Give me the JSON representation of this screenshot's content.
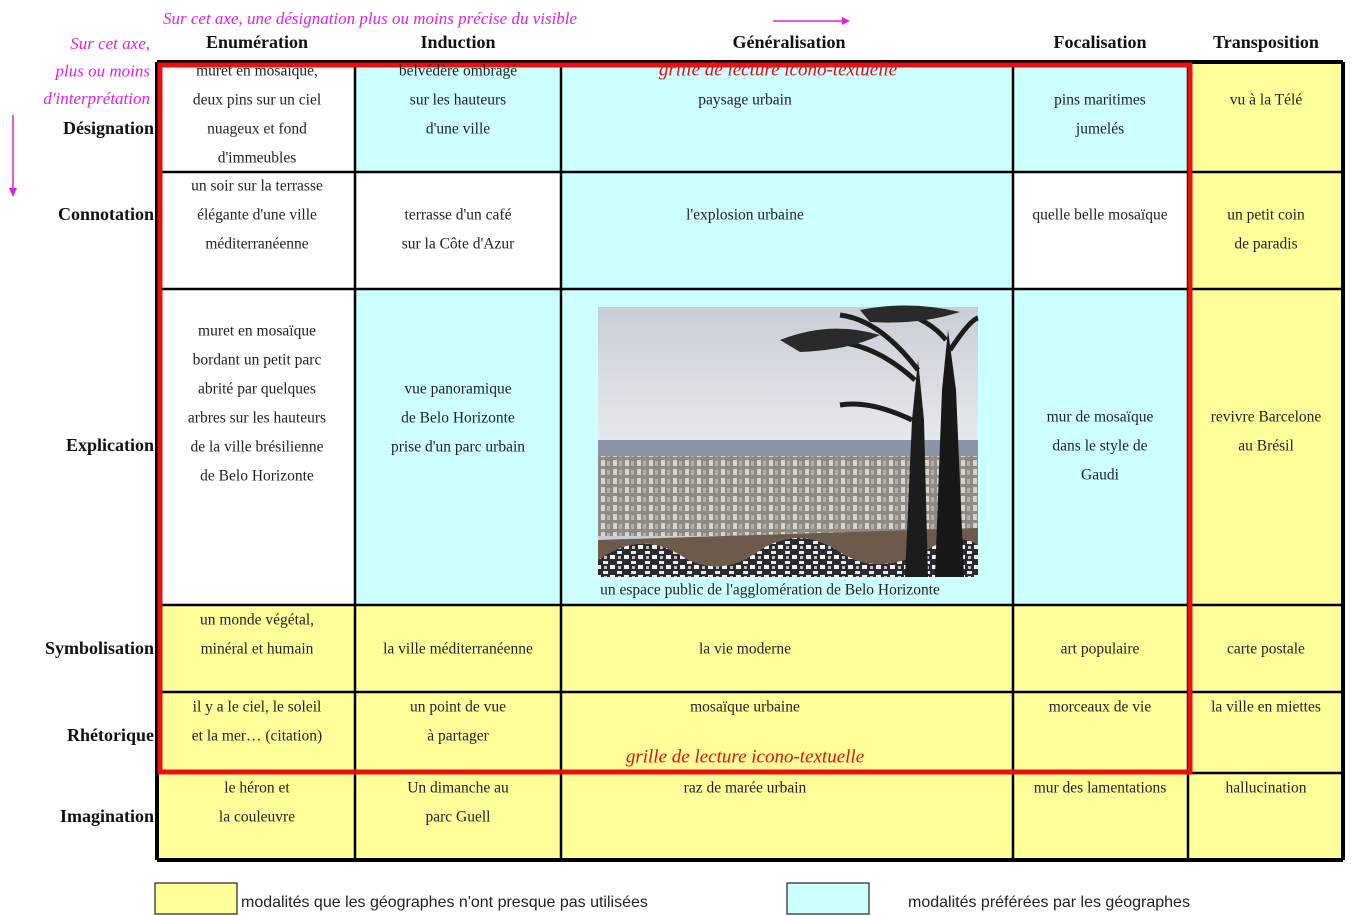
{
  "top_axis_note": "Sur cet axe, une désignation plus ou moins précise du visible",
  "left_axis_note": [
    "Sur cet axe,",
    "plus ou moins",
    "d'interprétation"
  ],
  "columns": [
    "Enumération",
    "Induction",
    "Généralisation",
    "Focalisation",
    "Transposition"
  ],
  "rows": [
    {
      "label": "Désignation",
      "cells": [
        [
          "muret en mosaïque,",
          "deux pins sur un ciel",
          "nuageux et fond",
          "d'immeubles"
        ],
        [
          "belvédère ombragé",
          "sur les hauteurs",
          "d'une ville"
        ],
        [
          "paysage urbain"
        ],
        [
          "pins maritimes",
          "jumelés"
        ],
        [
          "vu à la Télé"
        ]
      ]
    },
    {
      "label": "Connotation",
      "cells": [
        [
          "un soir sur la terrasse",
          "élégante d'une ville",
          "méditerranéenne"
        ],
        [
          "terrasse d'un café",
          "sur la Côte d'Azur"
        ],
        [
          "l'explosion urbaine"
        ],
        [
          "quelle belle mosaïque"
        ],
        [
          "un petit coin",
          "de paradis"
        ]
      ]
    },
    {
      "label": "Explication",
      "cells": [
        [
          "muret en mosaïque",
          "bordant un petit parc",
          "abrité par quelques",
          "arbres sur les hauteurs",
          "de la ville brésilienne",
          "de Belo Horizonte"
        ],
        [
          "vue panoramique",
          "de Belo Horizonte",
          "prise d'un parc urbain"
        ],
        [
          "un espace public de l'agglomération de Belo Horizonte"
        ],
        [
          "mur de mosaïque",
          "dans le style de",
          "Gaudi"
        ],
        [
          "revivre Barcelone",
          "au Brésil"
        ]
      ]
    },
    {
      "label": "Symbolisation",
      "cells": [
        [
          "un monde végétal,",
          "minéral et humain"
        ],
        [
          "la ville méditerranéenne"
        ],
        [
          "la vie moderne"
        ],
        [
          "art populaire"
        ],
        [
          "carte postale"
        ]
      ]
    },
    {
      "label": "Rhétorique",
      "cells": [
        [
          "il y a le ciel, le soleil",
          "et la mer… (citation)"
        ],
        [
          "un point de vue",
          "à partager"
        ],
        [
          "mosaïque urbaine"
        ],
        [
          "morceaux de vie"
        ],
        [
          "la ville en miettes"
        ]
      ]
    },
    {
      "label": "Imagination",
      "cells": [
        [
          "le héron et",
          "la couleuvre"
        ],
        [
          "Un dimanche au",
          "parc Guell"
        ],
        [
          "raz de marée urbain"
        ],
        [
          "mur des lamentations"
        ],
        [
          "hallucination"
        ]
      ]
    }
  ],
  "frame_labels": [
    "grille de lecture icono-textuelle",
    "grille de lecture icono-textuelle"
  ],
  "legend": [
    {
      "label": "modalités que les géographes n'ont presque pas utilisées",
      "color": "#ffff99"
    },
    {
      "label": "modalités préférées par les géographes",
      "color": "#ccffff"
    }
  ]
}
